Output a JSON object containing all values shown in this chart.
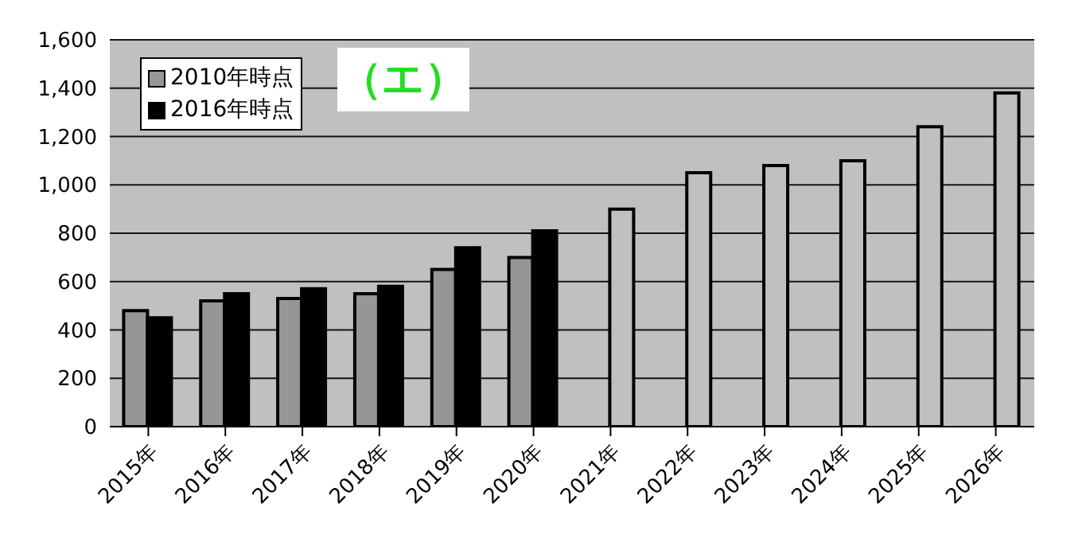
{
  "chart_data": {
    "type": "bar",
    "title": "（エ）",
    "categories": [
      "2015年",
      "2016年",
      "2017年",
      "2018年",
      "2019年",
      "2020年",
      "2021年",
      "2022年",
      "2023年",
      "2024年",
      "2025年",
      "2026年"
    ],
    "series": [
      {
        "name": "2010年時点",
        "color": "#969696",
        "values": [
          480,
          520,
          530,
          550,
          650,
          700,
          null,
          null,
          null,
          null,
          null,
          null
        ]
      },
      {
        "name": "2016年時点",
        "color": "#000000",
        "colors": [
          "#000000",
          "#000000",
          "#000000",
          "#000000",
          "#000000",
          "#000000",
          "#c0c0c0",
          "#c0c0c0",
          "#c0c0c0",
          "#c0c0c0",
          "#c0c0c0",
          "#c0c0c0"
        ],
        "values": [
          450,
          550,
          570,
          580,
          740,
          810,
          900,
          1050,
          1080,
          1100,
          1240,
          1380
        ]
      }
    ],
    "ylim": [
      0,
      1600
    ],
    "yticks": [
      0,
      200,
      400,
      600,
      800,
      {
        "value": 1000,
        "label": "1,000"
      },
      {
        "value": 1200,
        "label": "1,200"
      },
      {
        "value": 1400,
        "label": "1,400"
      },
      {
        "value": 1600,
        "label": "1,600"
      }
    ],
    "grid": "y",
    "legend": "top left"
  }
}
